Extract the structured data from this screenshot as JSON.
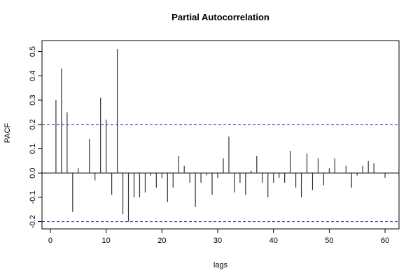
{
  "chart_data": {
    "type": "bar",
    "title": "Partial Autocorrelation",
    "xlabel": "lags",
    "ylabel": "PACF",
    "xlim": [
      -1.5,
      62.5
    ],
    "ylim": [
      -0.23,
      0.545
    ],
    "x_ticks": [
      0,
      10,
      20,
      30,
      40,
      50,
      60
    ],
    "y_ticks": [
      -0.2,
      -0.1,
      0.0,
      0.1,
      0.2,
      0.3,
      0.4,
      0.5
    ],
    "y_tick_labels": [
      "-0.2",
      "-0.1",
      "0.0",
      "0.1",
      "0.2",
      "0.3",
      "0.4",
      "0.5"
    ],
    "confidence_bounds": [
      0.2,
      -0.2
    ],
    "grid": false,
    "colors": {
      "spikes": "#333333",
      "bounds": "#2b2bb3",
      "axes": "#000000"
    },
    "series": [
      {
        "lags": [
          1,
          2,
          3,
          4,
          5,
          6,
          7,
          8,
          9,
          10,
          11,
          12,
          13,
          14,
          15,
          16,
          17,
          18,
          19,
          20,
          21,
          22,
          23,
          24,
          25,
          26,
          27,
          28,
          29,
          30,
          31,
          32,
          33,
          34,
          35,
          36,
          37,
          38,
          39,
          40,
          41,
          42,
          43,
          44,
          45,
          46,
          47,
          48,
          49,
          50,
          51,
          52,
          53,
          54,
          55,
          56,
          57,
          58,
          59,
          60
        ],
        "values": [
          0.3,
          0.43,
          0.25,
          -0.16,
          0.02,
          0.0,
          0.14,
          -0.03,
          0.31,
          0.22,
          -0.09,
          0.51,
          -0.17,
          -0.2,
          -0.1,
          -0.1,
          -0.08,
          -0.01,
          -0.06,
          -0.02,
          -0.12,
          -0.06,
          0.07,
          0.03,
          -0.04,
          -0.14,
          -0.04,
          -0.01,
          -0.09,
          -0.02,
          0.06,
          0.15,
          -0.08,
          -0.04,
          -0.09,
          0.01,
          0.07,
          -0.04,
          -0.1,
          -0.04,
          -0.02,
          -0.04,
          0.09,
          -0.06,
          -0.1,
          0.08,
          -0.07,
          0.06,
          -0.05,
          0.02,
          0.06,
          0.0,
          0.03,
          -0.06,
          -0.01,
          0.03,
          0.05,
          0.04,
          0.0,
          -0.02
        ]
      }
    ]
  }
}
